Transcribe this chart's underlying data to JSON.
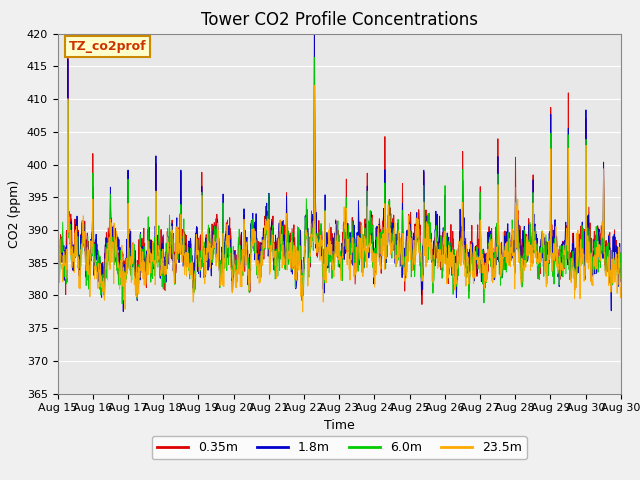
{
  "title": "Tower CO2 Profile Concentrations",
  "xlabel": "Time",
  "ylabel": "CO2 (ppm)",
  "ylim": [
    365,
    420
  ],
  "yticks": [
    365,
    370,
    375,
    380,
    385,
    390,
    395,
    400,
    405,
    410,
    415,
    420
  ],
  "n_days": 16,
  "pts_per_day": 96,
  "xtick_labels": [
    "Aug 15",
    "Aug 16",
    "Aug 17",
    "Aug 18",
    "Aug 19",
    "Aug 20",
    "Aug 21",
    "Aug 22",
    "Aug 23",
    "Aug 24",
    "Aug 25",
    "Aug 26",
    "Aug 27",
    "Aug 28",
    "Aug 29",
    "Aug 30"
  ],
  "series_colors": [
    "#dd0000",
    "#0000cc",
    "#00cc00",
    "#ffaa00"
  ],
  "series_labels": [
    "0.35m",
    "1.8m",
    "6.0m",
    "23.5m"
  ],
  "linewidth": 0.7,
  "legend_label": "TZ_co2prof",
  "legend_facecolor": "#ffffcc",
  "legend_edgecolor": "#cc8800",
  "bg_color": "#e8e8e8",
  "grid_color": "#ffffff",
  "title_fontsize": 12,
  "axis_fontsize": 9,
  "tick_fontsize": 8
}
